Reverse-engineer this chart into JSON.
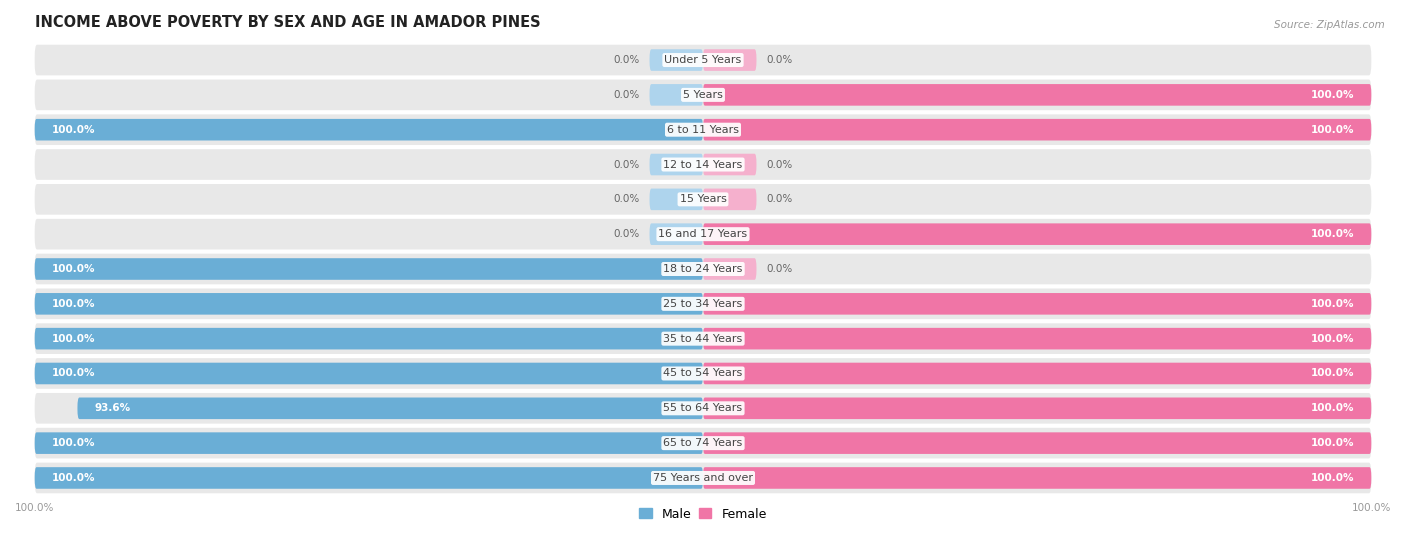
{
  "title": "INCOME ABOVE POVERTY BY SEX AND AGE IN AMADOR PINES",
  "source": "Source: ZipAtlas.com",
  "categories": [
    "Under 5 Years",
    "5 Years",
    "6 to 11 Years",
    "12 to 14 Years",
    "15 Years",
    "16 and 17 Years",
    "18 to 24 Years",
    "25 to 34 Years",
    "35 to 44 Years",
    "45 to 54 Years",
    "55 to 64 Years",
    "65 to 74 Years",
    "75 Years and over"
  ],
  "male_values": [
    0.0,
    0.0,
    100.0,
    0.0,
    0.0,
    0.0,
    100.0,
    100.0,
    100.0,
    100.0,
    93.6,
    100.0,
    100.0
  ],
  "female_values": [
    0.0,
    100.0,
    100.0,
    0.0,
    0.0,
    100.0,
    0.0,
    100.0,
    100.0,
    100.0,
    100.0,
    100.0,
    100.0
  ],
  "male_color": "#6aaed6",
  "female_color": "#f075a6",
  "male_light_color": "#aed4ed",
  "female_light_color": "#f5b0cd",
  "bg_color": "#ffffff",
  "row_bg_color": "#e8e8e8",
  "title_fontsize": 10.5,
  "label_fontsize": 8,
  "value_fontsize": 7.5,
  "legend_fontsize": 9,
  "bar_height": 0.62,
  "center_label_color": "#444444",
  "value_label_color_inside": "#ffffff",
  "value_label_color_outside": "#666666"
}
